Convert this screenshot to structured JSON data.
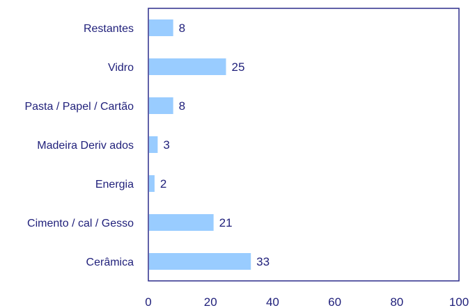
{
  "chart_data": {
    "type": "bar",
    "orientation": "horizontal",
    "categories": [
      "Restantes",
      "Vidro",
      "Pasta / Papel / Cartão",
      "Madeira Deriv ados",
      "Energia",
      "Cimento / cal / Gesso",
      "Cerâmica"
    ],
    "values": [
      8,
      25,
      8,
      3,
      2,
      21,
      33
    ],
    "value_labels": [
      "8",
      "25",
      "8",
      "3",
      "2",
      "21",
      "33"
    ],
    "xlim": [
      0,
      100
    ],
    "x_ticks": [
      "0",
      "20",
      "40",
      "60",
      "80",
      "100"
    ],
    "grid": false,
    "legend": "none",
    "colors": {
      "bar": "#99ccff",
      "frame": "#2b2b8a",
      "text": "#1f1f7a"
    }
  }
}
